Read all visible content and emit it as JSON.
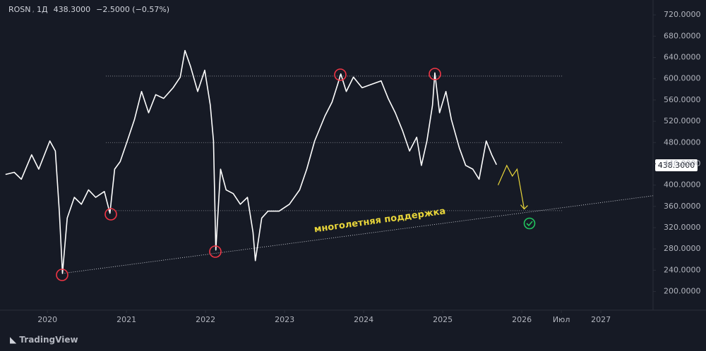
{
  "chart_data": {
    "type": "line",
    "header": {
      "symbol": "ROSN",
      "interval": "1Д",
      "last": "438.3000",
      "change": "−2.5000 (−0.57%)"
    },
    "last_price_label": "438.3000",
    "annotation": "многолетняя поддержка",
    "brand": "TradingView",
    "x": [
      2019.47,
      2019.58,
      2019.67,
      2019.8,
      2019.89,
      2020.03,
      2020.1,
      2020.15,
      2020.19,
      2020.25,
      2020.34,
      2020.43,
      2020.52,
      2020.61,
      2020.72,
      2020.79,
      2020.85,
      2020.92,
      2021.01,
      2021.1,
      2021.19,
      2021.28,
      2021.37,
      2021.47,
      2021.59,
      2021.68,
      2021.74,
      2021.81,
      2021.9,
      2021.99,
      2022.06,
      2022.1,
      2022.13,
      2022.19,
      2022.26,
      2022.35,
      2022.44,
      2022.53,
      2022.6,
      2022.63,
      2022.71,
      2022.79,
      2022.93,
      2023.06,
      2023.19,
      2023.28,
      2023.38,
      2023.51,
      2023.6,
      2023.67,
      2023.71,
      2023.78,
      2023.87,
      2023.98,
      2024.09,
      2024.22,
      2024.31,
      2024.4,
      2024.49,
      2024.58,
      2024.67,
      2024.73,
      2024.8,
      2024.87,
      2024.9,
      2024.96,
      2025.04,
      2025.11,
      2025.21,
      2025.29,
      2025.38,
      2025.46,
      2025.55,
      2025.62,
      2025.68
    ],
    "series": [
      {
        "name": "ROSN",
        "color": "#ffffff",
        "values": [
          420,
          424,
          411,
          457,
          430,
          483,
          464,
          351,
          234,
          338,
          377,
          364,
          391,
          377,
          388,
          347,
          430,
          444,
          483,
          523,
          576,
          536,
          570,
          563,
          583,
          603,
          653,
          623,
          576,
          616,
          550,
          483,
          278,
          430,
          391,
          384,
          364,
          377,
          311,
          258,
          338,
          351,
          351,
          364,
          391,
          430,
          483,
          530,
          556,
          589,
          609,
          576,
          603,
          583,
          589,
          596,
          563,
          536,
          503,
          464,
          490,
          437,
          483,
          550,
          611,
          536,
          576,
          523,
          470,
          437,
          430,
          411,
          483,
          457,
          438.3
        ]
      }
    ],
    "levels": [
      605,
      480,
      352
    ],
    "trendline": {
      "x": [
        2020.19,
        2027.66
      ],
      "y": [
        234,
        380
      ]
    },
    "projection": {
      "color": "#e8d53a",
      "x": [
        2025.7,
        2025.81,
        2025.88,
        2025.94,
        2026.03
      ],
      "y": [
        400,
        437,
        417,
        430,
        355
      ]
    },
    "xlim": [
      2019.4,
      2027.66
    ],
    "ylim": [
      165,
      748
    ],
    "xticks": [
      2020,
      2021,
      2022,
      2023,
      2024,
      2025,
      2026,
      {
        "value": 2026.5,
        "label": "Июл"
      },
      2027
    ],
    "yticks": [
      {
        "value": 200,
        "label": "200.0000"
      },
      {
        "value": 240,
        "label": "240.0000"
      },
      {
        "value": 280,
        "label": "280.0000"
      },
      {
        "value": 320,
        "label": "320.0000"
      },
      {
        "value": 360,
        "label": "360.0000"
      },
      {
        "value": 400,
        "label": "400.0000"
      },
      {
        "value": 440,
        "label": "440.0000"
      },
      {
        "value": 480,
        "label": "480.0000"
      },
      {
        "value": 520,
        "label": "520.0000"
      },
      {
        "value": 560,
        "label": "560.0000"
      },
      {
        "value": 600,
        "label": "600.0000"
      },
      {
        "value": 640,
        "label": "640.0000"
      },
      {
        "value": 680,
        "label": "680.0000"
      },
      {
        "value": 720,
        "label": "720.0000"
      }
    ]
  }
}
